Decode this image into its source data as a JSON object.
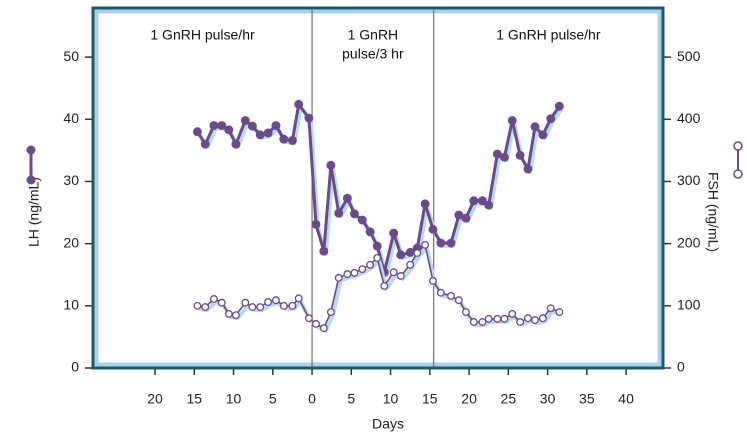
{
  "chart_data": {
    "type": "line",
    "y_label": "LH (ng/mL)",
    "y2_label": "FSH (ng/mL)",
    "x_label": "Days",
    "annotations": [
      [
        "1 GnRH pulse/hr"
      ],
      [
        "1 GnRH",
        "pulse/3 hr"
      ],
      [
        "1 GnRH pulse/hr"
      ]
    ],
    "dividers": [
      0,
      15.5
    ],
    "xlim": [
      -27.9,
      44.7
    ],
    "xticks": [
      {
        "value": -20,
        "label": "20"
      },
      {
        "value": -15,
        "label": "15"
      },
      {
        "value": -10,
        "label": "10"
      },
      {
        "value": -5,
        "label": "5"
      },
      0,
      5,
      10,
      15,
      20,
      25,
      30,
      35,
      40
    ],
    "ylim": [
      0,
      57.9
    ],
    "yticks": [
      0,
      10,
      20,
      30,
      40,
      50
    ],
    "y2lim": [
      0,
      579
    ],
    "y2ticks": [
      0,
      100,
      200,
      300,
      400,
      500
    ],
    "x": [
      -14.6,
      -13.6,
      -12.5,
      -11.5,
      -10.6,
      -9.7,
      -8.5,
      -7.6,
      -6.6,
      -5.6,
      -4.6,
      -3.6,
      -2.5,
      -1.7,
      -0.4,
      0.5,
      1.5,
      2.4,
      3.4,
      4.5,
      5.4,
      6.4,
      7.4,
      8.3,
      9.2,
      10.4,
      11.3,
      12.5,
      13.4,
      14.4,
      15.4,
      16.4,
      17.7,
      18.7,
      19.6,
      20.6,
      21.7,
      22.5,
      23.6,
      24.5,
      25.5,
      26.5,
      27.5,
      28.4,
      29.4,
      30.4,
      31.5
    ],
    "series": [
      {
        "color": "#6b4a8c",
        "marker": "filled",
        "values": [
          38,
          36,
          39,
          39,
          38.3,
          36,
          39.8,
          38.9,
          37.5,
          37.8,
          39,
          36.8,
          36.6,
          42.4,
          40.2,
          23.1,
          18.8,
          32.6,
          24.9,
          27.3,
          24.8,
          23.8,
          21.9,
          19.6,
          15.4,
          21.7,
          18.2,
          18.6,
          19.3,
          26.4,
          22.3,
          20.1,
          20.1,
          24.6,
          24.1,
          26.9,
          26.9,
          26.2,
          34.4,
          33.9,
          39.8,
          34.2,
          32,
          38.8,
          37.5,
          40.1,
          42.1
        ]
      },
      {
        "color": "#6b4a8c",
        "marker": "open",
        "axis": "y2",
        "values": [
          100,
          98,
          111,
          105,
          87,
          85,
          105,
          98,
          98,
          106,
          109,
          100,
          100,
          112,
          80,
          71,
          64,
          90,
          145,
          151,
          153,
          159,
          166,
          177,
          132,
          154,
          148,
          166,
          185,
          198,
          140,
          121,
          116,
          109,
          90,
          74,
          74,
          79,
          79,
          79,
          87,
          74,
          80,
          77,
          80,
          96,
          90
        ]
      }
    ]
  }
}
